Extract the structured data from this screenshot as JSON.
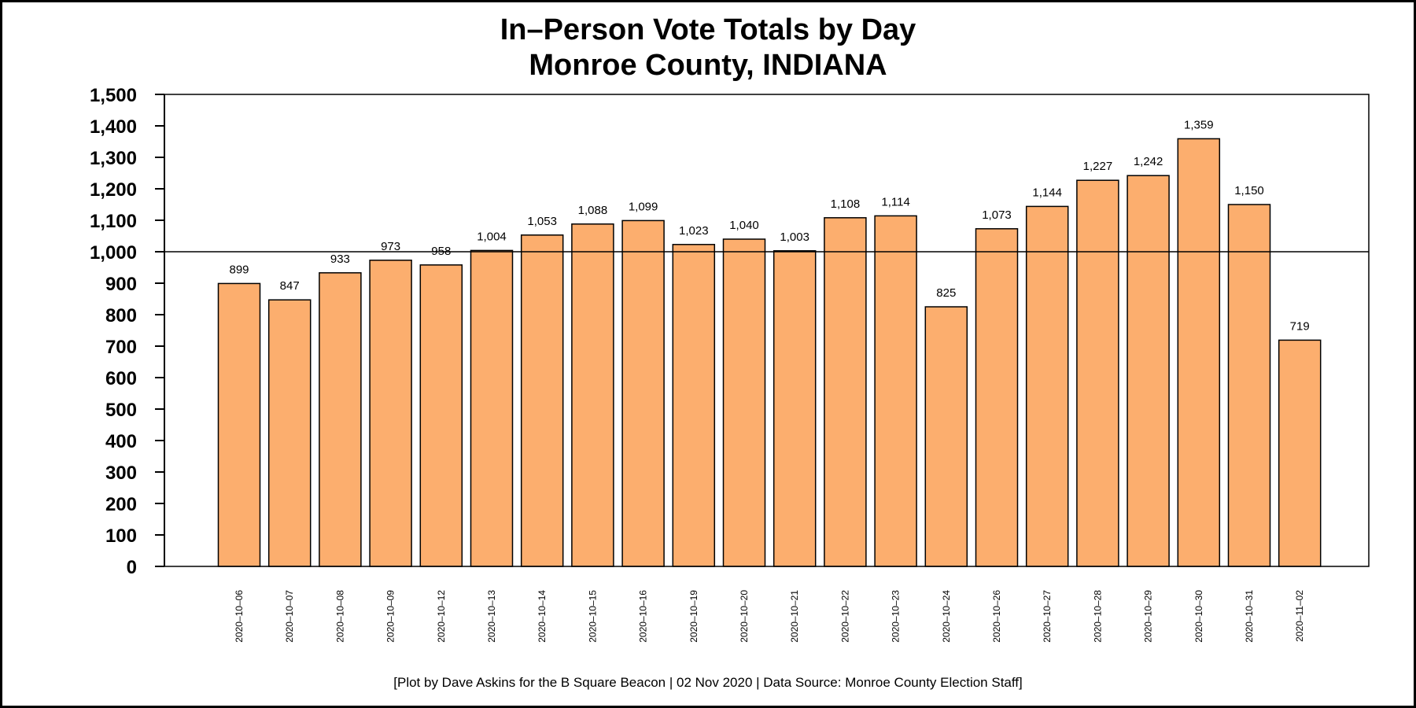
{
  "chart_data": {
    "type": "bar",
    "title": "In–Person Vote Totals by Day",
    "subtitle": "Monroe County, INDIANA",
    "xlabel": "",
    "ylabel": "",
    "categories": [
      "2020–10–06",
      "2020–10–07",
      "2020–10–08",
      "2020–10–09",
      "2020–10–12",
      "2020–10–13",
      "2020–10–14",
      "2020–10–15",
      "2020–10–16",
      "2020–10–19",
      "2020–10–20",
      "2020–10–21",
      "2020–10–22",
      "2020–10–23",
      "2020–10–24",
      "2020–10–26",
      "2020–10–27",
      "2020–10–28",
      "2020–10–29",
      "2020–10–30",
      "2020–10–31",
      "2020–11–02"
    ],
    "values": [
      899,
      847,
      933,
      973,
      958,
      1004,
      1053,
      1088,
      1099,
      1023,
      1040,
      1003,
      1108,
      1114,
      825,
      1073,
      1144,
      1227,
      1242,
      1359,
      1150,
      719
    ],
    "data_labels": [
      "899",
      "847",
      "933",
      "973",
      "958",
      "1,004",
      "1,053",
      "1,088",
      "1,099",
      "1,023",
      "1,040",
      "1,003",
      "1,108",
      "1,114",
      "825",
      "1,073",
      "1,144",
      "1,227",
      "1,242",
      "1,359",
      "1,150",
      "719"
    ],
    "yticks": [
      0,
      100,
      200,
      300,
      400,
      500,
      600,
      700,
      800,
      900,
      1000,
      1100,
      1200,
      1300,
      1400,
      1500
    ],
    "ytick_labels": [
      "0",
      "100",
      "200",
      "300",
      "400",
      "500",
      "600",
      "700",
      "800",
      "900",
      "1,000",
      "1,100",
      "1,200",
      "1,300",
      "1,400",
      "1,500"
    ],
    "ylim": [
      0,
      1500
    ],
    "reference_line": 1000,
    "bar_color": "#FCAE6E",
    "grid": false,
    "legend": "none"
  },
  "caption": "[Plot by Dave Askins for the B Square Beacon | 02 Nov 2020 | Data Source: Monroe County Election Staff]"
}
